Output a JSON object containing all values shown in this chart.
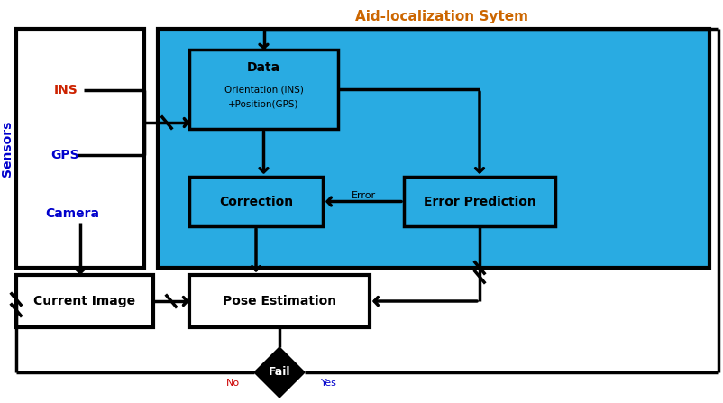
{
  "title": "Aid-localization Sytem",
  "title_color": "#CC6600",
  "bg_color": "#FFFFFF",
  "blue_bg": "#29ABE2",
  "ins_label": "INS",
  "gps_label": "GPS",
  "camera_label": "Camera",
  "sensors_label": "Sensors",
  "correction_label": "Correction",
  "error_prediction_label": "Error Prediction",
  "current_image_label": "Current Image",
  "pose_estimation_label": "Pose Estimation",
  "fail_label": "Fail",
  "no_label": "No",
  "yes_label": "Yes",
  "no_color": "#CC0000",
  "yes_color": "#0000CC",
  "ins_color": "#CC2200",
  "gps_color": "#0000CC",
  "camera_color": "#0000CC",
  "sensors_color": "#0000CC",
  "current_image_color": "#CC2200",
  "pose_estimation_color": "#CC2200"
}
